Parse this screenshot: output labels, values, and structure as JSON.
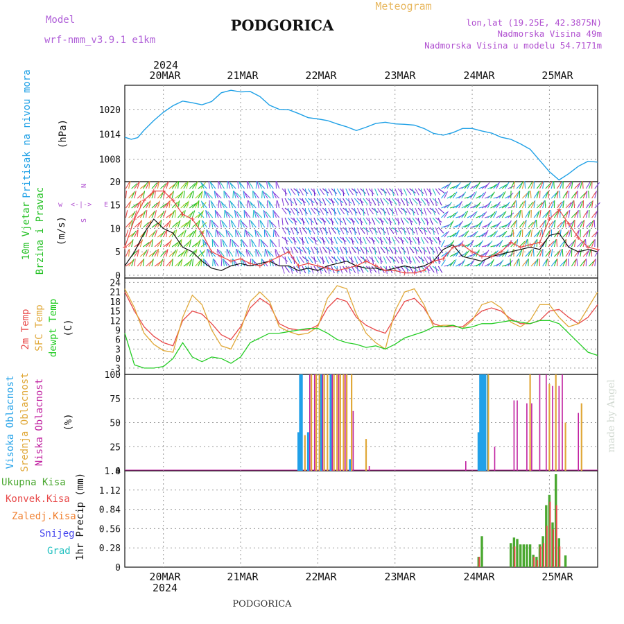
{
  "header": {
    "model_label": "Model",
    "model_name": "wrf-nmm_v3.9.1 e1km",
    "city": "PODGORICA",
    "meteogram": "Meteogram",
    "lonlat": "lon,lat (19.25E, 42.3875N)",
    "altitude": "Nadmorska Visina 49m",
    "model_altitude": "Nadmorska Visina u modelu 54.7171m",
    "year_top": "2024",
    "watermark": "made by Angel"
  },
  "footer": {
    "city": "PODGORICA",
    "year_bottom": "2024"
  },
  "colors": {
    "pressure": "#1ea0e6",
    "wind_label": "#22c022",
    "temp2m": "#e84848",
    "sfc": "#e0a838",
    "dew": "#22cc22",
    "high_cloud": "#20a0e8",
    "mid_cloud": "#e0a838",
    "low_cloud": "#c020a0",
    "total_precip": "#4aa830",
    "conv_precip": "#e84848",
    "frozen": "#f08030",
    "snow": "#4444ee",
    "grad": "#20c0c0",
    "grid": "#999999"
  },
  "x_axis": {
    "days": [
      "20MAR",
      "21MAR",
      "22MAR",
      "23MAR",
      "24MAR",
      "25MAR"
    ],
    "day_offsets_h": [
      12,
      36,
      60,
      84,
      108,
      132
    ],
    "range_h": [
      0,
      147
    ],
    "start": "2024-03-19 12:00"
  },
  "chart_data": [
    {
      "type": "line",
      "name": "pressure",
      "ylabel": [
        "Pritisak na nivou mora",
        "(hPa)"
      ],
      "yticks": [
        1008,
        1014,
        1020
      ],
      "ylim": [
        1002.6,
        1025.8
      ],
      "x_h": [
        0,
        2,
        4,
        6,
        9,
        12,
        15,
        18,
        21,
        24,
        27,
        30,
        33,
        36,
        39,
        42,
        45,
        48,
        51,
        54,
        57,
        60,
        63,
        66,
        69,
        72,
        75,
        78,
        81,
        84,
        87,
        90,
        93,
        96,
        99,
        102,
        105,
        108,
        111,
        114,
        117,
        120,
        123,
        126,
        129,
        132,
        135,
        138,
        141,
        144,
        147
      ],
      "values": [
        1013.3,
        1012.8,
        1013.2,
        1015.0,
        1017.3,
        1019.3,
        1020.9,
        1022.0,
        1021.6,
        1021.1,
        1021.9,
        1024.0,
        1024.6,
        1024.2,
        1024.3,
        1023.1,
        1021.0,
        1020.0,
        1019.9,
        1019.0,
        1018.0,
        1017.7,
        1017.3,
        1016.5,
        1015.8,
        1014.9,
        1015.7,
        1016.6,
        1016.9,
        1016.5,
        1016.4,
        1016.2,
        1015.4,
        1014.2,
        1013.8,
        1014.4,
        1015.4,
        1015.4,
        1014.8,
        1014.3,
        1013.3,
        1012.8,
        1011.7,
        1010.4,
        1007.7,
        1005.0,
        1003.0,
        1004.5,
        1006.3,
        1007.5,
        1007.3
      ]
    },
    {
      "type": "line",
      "name": "wind",
      "ylabel": [
        "10m Vjetar",
        "Brzina i Pravac",
        "(m/s)"
      ],
      "legend_glyphs": [
        "w",
        "<-|->",
        "E",
        "S",
        "N"
      ],
      "yticks": [
        0,
        5,
        10,
        15,
        20
      ],
      "ylim": [
        -0.6,
        20
      ],
      "x_h": [
        0,
        3,
        6,
        9,
        12,
        15,
        18,
        21,
        24,
        27,
        30,
        33,
        36,
        39,
        42,
        45,
        48,
        51,
        54,
        57,
        60,
        63,
        66,
        69,
        72,
        75,
        78,
        81,
        84,
        87,
        90,
        93,
        96,
        99,
        102,
        105,
        108,
        111,
        114,
        117,
        120,
        123,
        126,
        129,
        132,
        135,
        138,
        141,
        144,
        147
      ],
      "mean_speed": [
        2.0,
        5.0,
        9.0,
        12.0,
        10.0,
        9.0,
        6.0,
        5.0,
        3.0,
        1.5,
        1.0,
        2.0,
        2.5,
        2.0,
        2.5,
        3.0,
        2.0,
        2.0,
        1.0,
        1.5,
        1.0,
        2.0,
        2.5,
        3.0,
        2.0,
        1.5,
        1.5,
        1.0,
        1.5,
        2.0,
        1.5,
        2.0,
        3.0,
        5.5,
        6.5,
        4.0,
        3.5,
        3.0,
        4.0,
        4.5,
        5.0,
        5.5,
        6.0,
        5.5,
        8.5,
        9.0,
        6.0,
        5.0,
        5.5,
        5.0
      ],
      "gust": [
        6.0,
        12.0,
        16.0,
        18.0,
        18.0,
        16.0,
        13.0,
        12.0,
        9.0,
        5.0,
        4.0,
        3.0,
        3.5,
        2.5,
        2.0,
        3.0,
        4.0,
        5.0,
        2.0,
        2.5,
        2.0,
        1.5,
        1.0,
        1.5,
        2.0,
        3.0,
        2.0,
        1.0,
        1.0,
        0.5,
        0.5,
        1.0,
        3.0,
        3.5,
        6.0,
        6.5,
        5.0,
        4.0,
        4.0,
        5.0,
        7.0,
        6.0,
        6.5,
        7.0,
        12.0,
        14.0,
        11.0,
        8.0,
        6.0,
        5.5
      ]
    },
    {
      "type": "line",
      "name": "temperature",
      "ylabel": [
        "2m Temp",
        "SFC Temp",
        "dewpt Temp",
        "(C)"
      ],
      "yticks": [
        -3,
        0,
        3,
        6,
        9,
        12,
        15,
        18,
        21,
        24
      ],
      "ylim": [
        -5,
        25.4
      ],
      "x_h": [
        0,
        3,
        6,
        9,
        12,
        15,
        18,
        21,
        24,
        27,
        30,
        33,
        36,
        39,
        42,
        45,
        48,
        51,
        54,
        57,
        60,
        63,
        66,
        69,
        72,
        75,
        78,
        81,
        84,
        87,
        90,
        93,
        96,
        99,
        102,
        105,
        108,
        111,
        114,
        117,
        120,
        123,
        126,
        129,
        132,
        135,
        138,
        141,
        144,
        147
      ],
      "series": [
        {
          "name": "2m Temp",
          "values": [
            21.0,
            15.0,
            10.0,
            7.0,
            5.0,
            4.0,
            12.0,
            15.0,
            14.0,
            11.0,
            7.5,
            6.0,
            10.0,
            16.0,
            19.0,
            17.0,
            11.0,
            9.5,
            9.0,
            9.0,
            10.5,
            16.0,
            19.0,
            18.0,
            13.0,
            10.5,
            9.0,
            8.0,
            13.0,
            18.0,
            19.0,
            16.0,
            11.0,
            10.0,
            10.0,
            10.0,
            12.5,
            15.0,
            16.0,
            15.0,
            12.5,
            11.0,
            11.0,
            12.0,
            15.0,
            15.5,
            13.0,
            11.0,
            13.0,
            17.0
          ]
        },
        {
          "name": "SFC Temp",
          "values": [
            22.0,
            16.0,
            8.0,
            4.5,
            2.5,
            2.0,
            13.0,
            20.0,
            17.0,
            9.0,
            4.0,
            3.0,
            9.0,
            18.0,
            21.0,
            18.0,
            10.0,
            8.5,
            7.5,
            8.0,
            10.0,
            19.0,
            23.0,
            22.0,
            14.0,
            8.0,
            5.0,
            3.0,
            15.0,
            21.0,
            22.0,
            17.0,
            10.0,
            10.5,
            10.5,
            9.5,
            12.0,
            17.0,
            18.0,
            16.0,
            11.5,
            10.0,
            12.0,
            17.0,
            17.0,
            13.0,
            10.0,
            11.0,
            16.0,
            21.0
          ]
        },
        {
          "name": "dewpt Temp",
          "values": [
            8.0,
            -2.0,
            -3.0,
            -3.0,
            -2.5,
            0.0,
            5.0,
            0.5,
            -1.0,
            0.5,
            0.0,
            -1.5,
            0.5,
            5.0,
            6.5,
            8.0,
            8.0,
            8.5,
            9.0,
            9.5,
            9.5,
            8.0,
            6.0,
            5.0,
            4.5,
            3.5,
            4.0,
            3.0,
            4.5,
            6.5,
            7.5,
            8.5,
            10.0,
            10.0,
            10.5,
            9.5,
            10.0,
            11.0,
            11.0,
            11.5,
            12.0,
            11.5,
            11.0,
            12.0,
            12.0,
            11.0,
            8.0,
            5.0,
            2.0,
            1.0
          ]
        }
      ]
    },
    {
      "type": "bar",
      "name": "clouds",
      "ylabel": [
        "Visoka Oblacnost",
        "Srednja Oblacnost",
        "Niska Oblacnost",
        "(%)"
      ],
      "yticks": [
        0,
        25,
        50,
        75,
        100
      ],
      "ylim": [
        0,
        100
      ],
      "series": [
        {
          "name": "Visoka Oblacnost",
          "x_h": [
            54.0,
            54.5,
            55.0,
            57.0,
            61.0,
            64.0,
            70.0,
            110.0,
            110.5,
            111.0,
            111.5,
            112.0,
            112.8
          ],
          "values": [
            40,
            100,
            100,
            40,
            100,
            100,
            12,
            40,
            100,
            100,
            100,
            100,
            100
          ]
        },
        {
          "name": "Srednja Oblacnost",
          "x_h": [
            56.0,
            58.0,
            59.5,
            60.5,
            62.0,
            63.0,
            65.0,
            66.0,
            67.0,
            68.0,
            69.0,
            70.5,
            75.0,
            113.0,
            126.0,
            132.0,
            134.0,
            137.0,
            142.0
          ],
          "values": [
            37,
            100,
            100,
            100,
            100,
            100,
            100,
            100,
            100,
            100,
            100,
            100,
            33,
            100,
            100,
            90,
            100,
            50,
            70
          ]
        },
        {
          "name": "Niska Oblacnost",
          "x_h": [
            57.5,
            59.0,
            61.5,
            64.5,
            66.5,
            68.5,
            71.0,
            76.0,
            106.0,
            115.0,
            121.0,
            122.0,
            125.0,
            126.5,
            129.0,
            131.0,
            133.0,
            135.0,
            136.0,
            141.0
          ],
          "values": [
            100,
            100,
            100,
            100,
            100,
            100,
            62,
            5,
            10,
            25,
            73,
            73,
            70,
            70,
            100,
            100,
            88,
            88,
            100,
            60
          ]
        }
      ]
    },
    {
      "type": "bar",
      "name": "precipitation",
      "ylabel": [
        "1hr Precip (mm)"
      ],
      "legend": [
        "Ukupna Kisa",
        "Konvek.Kisa",
        "Zaledj.Kisa",
        "Snijeg",
        "Grad"
      ],
      "yticks": [
        0,
        0.28,
        0.56,
        0.84,
        1.12,
        1.4
      ],
      "ylim": [
        0,
        1.4
      ],
      "series": [
        {
          "name": "Ukupna Kisa",
          "x_h": [
            110.0,
            111.0,
            120.0,
            121.0,
            122.0,
            123.0,
            124.0,
            125.0,
            126.0,
            127.0,
            128.0,
            129.0,
            130.0,
            131.0,
            132.0,
            133.0,
            134.0,
            135.0,
            137.0
          ],
          "values": [
            0.15,
            0.45,
            0.35,
            0.43,
            0.41,
            0.33,
            0.33,
            0.33,
            0.33,
            0.18,
            0.15,
            0.33,
            0.45,
            0.9,
            1.05,
            0.65,
            1.35,
            0.42,
            0.17
          ]
        },
        {
          "name": "Konvek.Kisa",
          "x_h": [
            110.0,
            121.0,
            127.0,
            128.0,
            129.0,
            130.0,
            131.0,
            132.0,
            133.0,
            134.0,
            135.0
          ],
          "values": [
            0.15,
            0.3,
            0.15,
            0.1,
            0.3,
            0.35,
            0.6,
            0.95,
            0.55,
            0.9,
            0.3
          ]
        }
      ]
    }
  ]
}
